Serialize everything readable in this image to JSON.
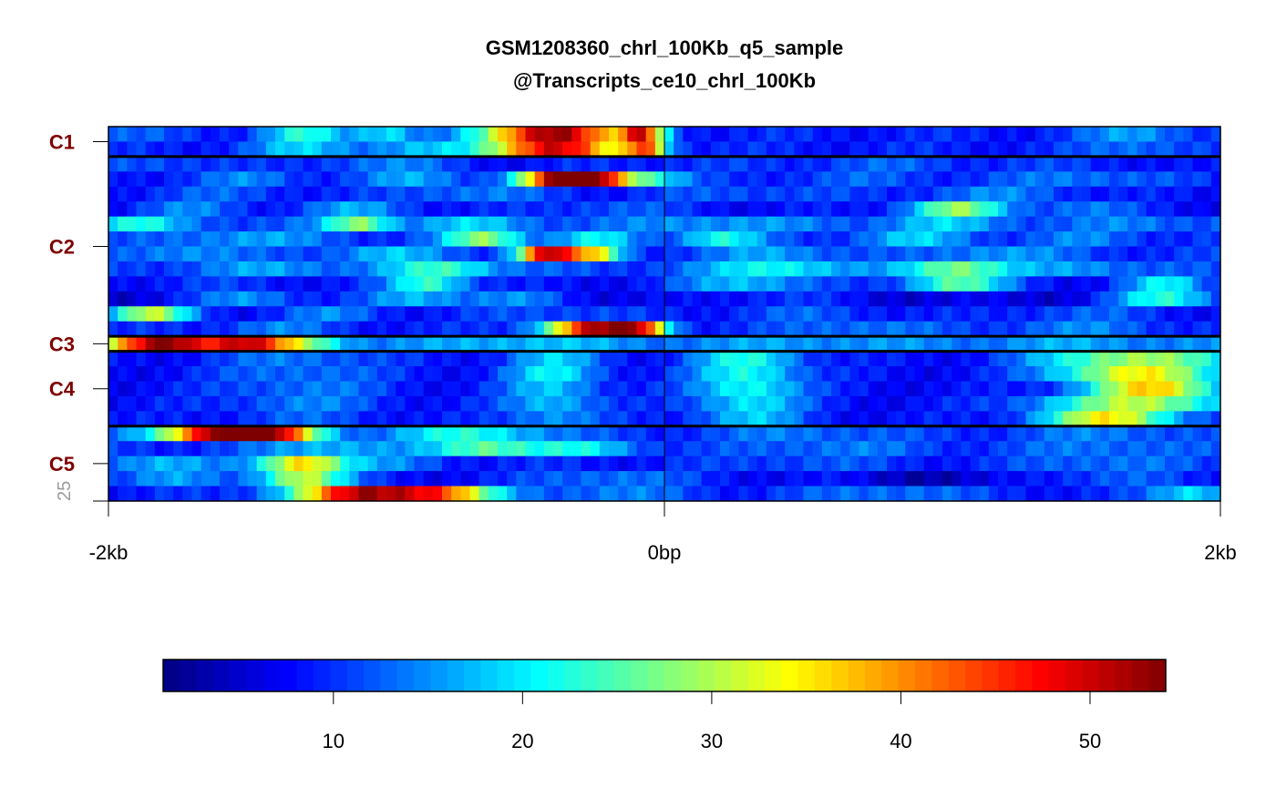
{
  "chart_data": {
    "type": "heatmap",
    "title_line1": "GSM1208360_chrl_100Kb_q5_sample",
    "title_line2": "@Transcripts_ce10_chrl_100Kb",
    "x_tick_labels": [
      "-2kb",
      "0bp",
      "2kb"
    ],
    "x_range_bp": [
      -2000,
      2000
    ],
    "row_count_label": "25",
    "total_rows": 25,
    "clusters": [
      {
        "label": "C1",
        "rows": 2
      },
      {
        "label": "C2",
        "rows": 12
      },
      {
        "label": "C3",
        "rows": 1
      },
      {
        "label": "C4",
        "rows": 5
      },
      {
        "label": "C5",
        "rows": 5
      }
    ],
    "colorbar": {
      "min": 1,
      "max": 54,
      "ticks": [
        10,
        20,
        30,
        40,
        50
      ],
      "colors": [
        "#00007F",
        "#0000FF",
        "#007FFF",
        "#00FFFF",
        "#7FFF7F",
        "#FFFF00",
        "#FF7F00",
        "#FF0000",
        "#7F0000"
      ]
    },
    "heatmap_rows": [
      {
        "cluster": "C1",
        "base": 9,
        "peaks": [
          [
            -2000,
            12,
            300
          ],
          [
            -1300,
            22,
            150
          ],
          [
            -1000,
            20,
            120
          ],
          [
            -400,
            54,
            250
          ],
          [
            -80,
            40,
            80
          ],
          [
            1700,
            16,
            200
          ]
        ]
      },
      {
        "cluster": "C1",
        "base": 9,
        "peaks": [
          [
            -1300,
            18,
            200
          ],
          [
            -900,
            16,
            200
          ],
          [
            -400,
            50,
            250
          ],
          [
            -70,
            38,
            80
          ],
          [
            1700,
            14,
            200
          ]
        ]
      },
      {
        "cluster": "C2",
        "base": 7,
        "peaks": [
          [
            -1800,
            12,
            300
          ],
          [
            -1000,
            14,
            300
          ],
          [
            0,
            10,
            400
          ],
          [
            800,
            12,
            400
          ],
          [
            1500,
            10,
            300
          ]
        ]
      },
      {
        "cluster": "C2",
        "base": 9,
        "peaks": [
          [
            -1500,
            14,
            200
          ],
          [
            -900,
            16,
            200
          ],
          [
            -380,
            48,
            150
          ],
          [
            -250,
            36,
            120
          ],
          [
            -80,
            24,
            150
          ],
          [
            700,
            12,
            300
          ],
          [
            1500,
            14,
            300
          ]
        ]
      },
      {
        "cluster": "C2",
        "base": 8,
        "peaks": [
          [
            -1600,
            12,
            300
          ],
          [
            -700,
            14,
            300
          ],
          [
            300,
            12,
            400
          ],
          [
            1200,
            14,
            300
          ]
        ]
      },
      {
        "cluster": "C2",
        "base": 8,
        "peaks": [
          [
            -1700,
            14,
            200
          ],
          [
            -1100,
            16,
            200
          ],
          [
            -200,
            12,
            300
          ],
          [
            1050,
            28,
            180
          ],
          [
            1500,
            14,
            200
          ]
        ]
      },
      {
        "cluster": "C2",
        "base": 12,
        "peaks": [
          [
            -1900,
            22,
            150
          ],
          [
            -1100,
            28,
            120
          ],
          [
            -700,
            18,
            200
          ],
          [
            200,
            16,
            300
          ],
          [
            1000,
            18,
            200
          ],
          [
            1700,
            14,
            200
          ]
        ]
      },
      {
        "cluster": "C2",
        "base": 10,
        "peaks": [
          [
            -1500,
            16,
            300
          ],
          [
            -650,
            28,
            150
          ],
          [
            -250,
            20,
            150
          ],
          [
            200,
            22,
            150
          ],
          [
            900,
            18,
            200
          ],
          [
            1500,
            14,
            200
          ]
        ]
      },
      {
        "cluster": "C2",
        "base": 10,
        "peaks": [
          [
            -1700,
            16,
            200
          ],
          [
            -1000,
            18,
            200
          ],
          [
            -420,
            50,
            110
          ],
          [
            -250,
            32,
            100
          ],
          [
            400,
            16,
            250
          ],
          [
            1200,
            16,
            250
          ]
        ]
      },
      {
        "cluster": "C2",
        "base": 11,
        "peaks": [
          [
            -1400,
            16,
            250
          ],
          [
            -800,
            24,
            200
          ],
          [
            400,
            22,
            250
          ],
          [
            1050,
            28,
            200
          ],
          [
            1500,
            16,
            200
          ]
        ]
      },
      {
        "cluster": "C2",
        "base": 8,
        "peaks": [
          [
            -1600,
            10,
            300
          ],
          [
            -850,
            24,
            150
          ],
          [
            300,
            18,
            250
          ],
          [
            1050,
            26,
            180
          ],
          [
            1800,
            20,
            150
          ]
        ]
      },
      {
        "cluster": "C2",
        "base": 6,
        "peaks": [
          [
            -1500,
            16,
            200
          ],
          [
            -900,
            18,
            200
          ],
          [
            -500,
            14,
            200
          ],
          [
            400,
            10,
            300
          ],
          [
            1800,
            22,
            200
          ]
        ]
      },
      {
        "cluster": "C2",
        "base": 8,
        "peaks": [
          [
            -1850,
            30,
            150
          ],
          [
            -1200,
            14,
            200
          ],
          [
            -400,
            12,
            300
          ],
          [
            500,
            12,
            300
          ],
          [
            1500,
            12,
            300
          ]
        ]
      },
      {
        "cluster": "C2",
        "base": 9,
        "peaks": [
          [
            -1400,
            14,
            200
          ],
          [
            -250,
            50,
            180
          ],
          [
            -80,
            32,
            100
          ],
          [
            700,
            14,
            300
          ],
          [
            1500,
            14,
            300
          ]
        ]
      },
      {
        "cluster": "C3",
        "base": 14,
        "peaks": [
          [
            -1800,
            54,
            200
          ],
          [
            -1500,
            44,
            150
          ],
          [
            -1300,
            26,
            150
          ],
          [
            -500,
            18,
            300
          ],
          [
            500,
            16,
            300
          ],
          [
            1500,
            16,
            300
          ]
        ]
      },
      {
        "cluster": "C4",
        "base": 8,
        "peaks": [
          [
            -1300,
            14,
            300
          ],
          [
            -400,
            18,
            180
          ],
          [
            300,
            22,
            200
          ],
          [
            1700,
            30,
            350
          ]
        ]
      },
      {
        "cluster": "C4",
        "base": 8,
        "peaks": [
          [
            -1300,
            14,
            300
          ],
          [
            -400,
            20,
            180
          ],
          [
            300,
            22,
            200
          ],
          [
            1700,
            34,
            300
          ]
        ]
      },
      {
        "cluster": "C4",
        "base": 8,
        "peaks": [
          [
            -1300,
            14,
            300
          ],
          [
            -400,
            18,
            180
          ],
          [
            300,
            22,
            200
          ],
          [
            1750,
            36,
            250
          ]
        ]
      },
      {
        "cluster": "C4",
        "base": 8,
        "peaks": [
          [
            -1300,
            14,
            300
          ],
          [
            -400,
            18,
            180
          ],
          [
            300,
            20,
            200
          ],
          [
            1700,
            30,
            350
          ]
        ]
      },
      {
        "cluster": "C4",
        "base": 8,
        "peaks": [
          [
            -1300,
            12,
            300
          ],
          [
            -400,
            16,
            180
          ],
          [
            300,
            18,
            200
          ],
          [
            1600,
            34,
            250
          ]
        ]
      },
      {
        "cluster": "C5",
        "base": 10,
        "peaks": [
          [
            -1600,
            50,
            220
          ],
          [
            -1400,
            36,
            180
          ],
          [
            -700,
            22,
            300
          ],
          [
            500,
            14,
            300
          ],
          [
            1600,
            14,
            300
          ]
        ]
      },
      {
        "cluster": "C5",
        "base": 10,
        "peaks": [
          [
            -1200,
            18,
            250
          ],
          [
            -650,
            26,
            200
          ],
          [
            -300,
            20,
            200
          ],
          [
            600,
            14,
            300
          ],
          [
            1600,
            14,
            300
          ]
        ]
      },
      {
        "cluster": "C5",
        "base": 9,
        "peaks": [
          [
            -1800,
            18,
            200
          ],
          [
            -1300,
            36,
            160
          ],
          [
            -1000,
            14,
            200
          ],
          [
            500,
            12,
            300
          ],
          [
            1600,
            14,
            300
          ]
        ]
      },
      {
        "cluster": "C5",
        "base": 8,
        "peaks": [
          [
            -1800,
            16,
            200
          ],
          [
            -1300,
            32,
            160
          ],
          [
            -200,
            14,
            300
          ],
          [
            1000,
            4,
            300
          ],
          [
            1600,
            12,
            300
          ]
        ]
      },
      {
        "cluster": "C5",
        "base": 9,
        "peaks": [
          [
            -1100,
            48,
            250
          ],
          [
            -800,
            36,
            200
          ],
          [
            -200,
            14,
            300
          ],
          [
            800,
            14,
            300
          ],
          [
            1900,
            20,
            150
          ]
        ]
      }
    ]
  }
}
